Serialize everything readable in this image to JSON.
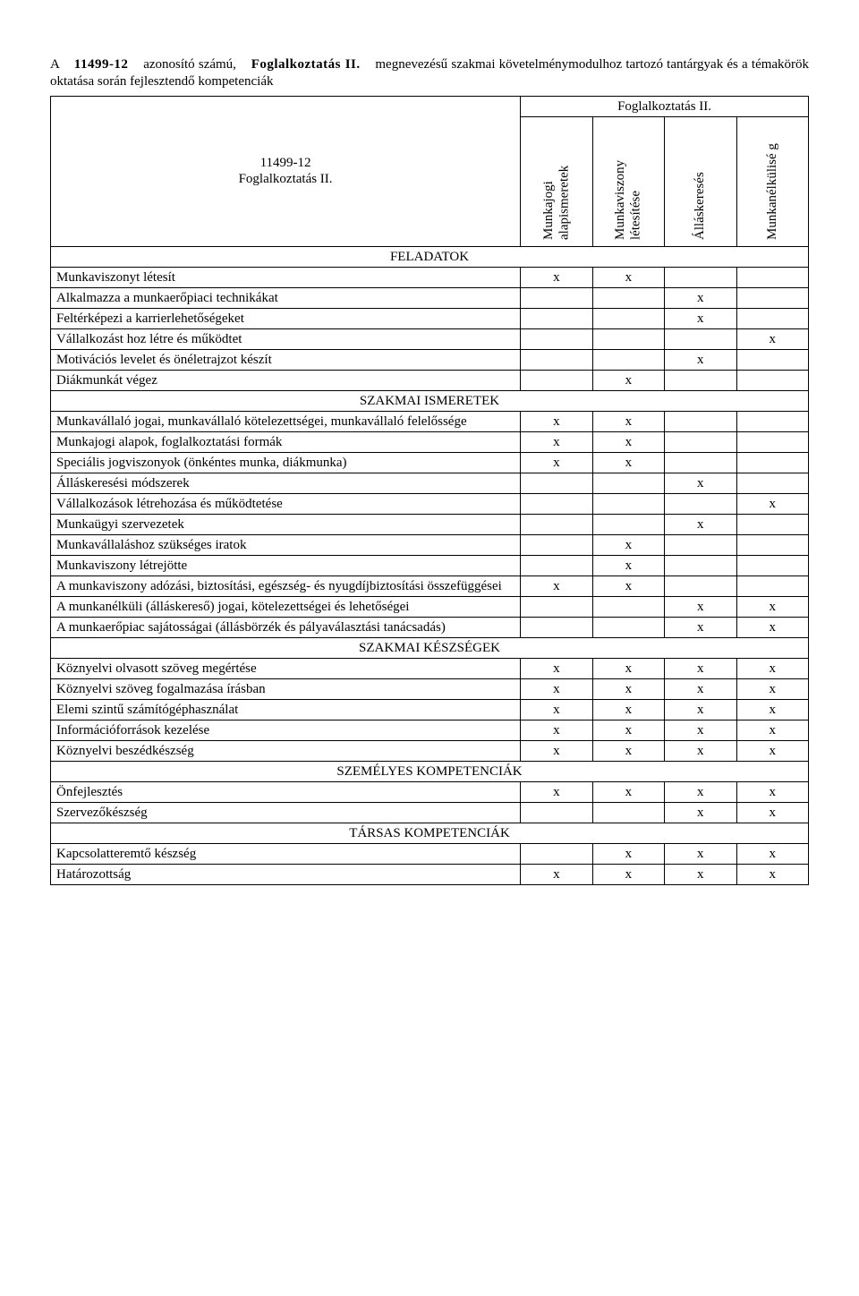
{
  "intro_parts": {
    "a": "A",
    "code_bold": "11499-12",
    "mid1": "azonosító  számú,",
    "name_bold": "Foglalkoztatás  II.",
    "mid2": "megnevezésű  szakmai követelménymodulhoz tartozó tantárgyak és a témakörök oktatása során fejlesztendő kompetenciák"
  },
  "header": {
    "module_block": "11499-12\nFoglalkoztatás II.",
    "group_title": "Foglalkoztatás II.",
    "cols": [
      "Munkajogi alapismeretek",
      "Munkaviszony létesítése",
      "Álláskeresés",
      "Munkanélkülisé g"
    ]
  },
  "sections": [
    {
      "title": "FELADATOK",
      "rows": [
        {
          "label": "Munkaviszonyt létesít",
          "marks": [
            "x",
            "x",
            "",
            ""
          ]
        },
        {
          "label": "Alkalmazza a munkaerőpiaci technikákat",
          "marks": [
            "",
            "",
            "x",
            ""
          ]
        },
        {
          "label": "Feltérképezi a karrierlehetőségeket",
          "marks": [
            "",
            "",
            "x",
            ""
          ]
        },
        {
          "label": "Vállalkozást hoz létre és működtet",
          "marks": [
            "",
            "",
            "",
            "x"
          ]
        },
        {
          "label": "Motivációs levelet és önéletrajzot készít",
          "marks": [
            "",
            "",
            "x",
            ""
          ]
        },
        {
          "label": "Diákmunkát végez",
          "marks": [
            "",
            "x",
            "",
            ""
          ]
        }
      ]
    },
    {
      "title": "SZAKMAI ISMERETEK",
      "rows": [
        {
          "label": "Munkavállaló jogai, munkavállaló kötelezettségei, munkavállaló felelőssége",
          "marks": [
            "x",
            "x",
            "",
            ""
          ]
        },
        {
          "label": "Munkajogi alapok, foglalkoztatási formák",
          "marks": [
            "x",
            "x",
            "",
            ""
          ]
        },
        {
          "label": "Speciális jogviszonyok (önkéntes munka, diákmunka)",
          "marks": [
            "x",
            "x",
            "",
            ""
          ]
        },
        {
          "label": "Álláskeresési módszerek",
          "marks": [
            "",
            "",
            "x",
            ""
          ]
        },
        {
          "label": "Vállalkozások létrehozása és működtetése",
          "marks": [
            "",
            "",
            "",
            "x"
          ]
        },
        {
          "label": "Munkaügyi szervezetek",
          "marks": [
            "",
            "",
            "x",
            ""
          ]
        },
        {
          "label": "Munkavállaláshoz szükséges iratok",
          "marks": [
            "",
            "x",
            "",
            ""
          ]
        },
        {
          "label": "Munkaviszony létrejötte",
          "marks": [
            "",
            "x",
            "",
            ""
          ]
        },
        {
          "label": "A munkaviszony adózási, biztosítási, egészség- és nyugdíjbiztosítási összefüggései",
          "marks": [
            "x",
            "x",
            "",
            ""
          ]
        },
        {
          "label": "A munkanélküli (álláskereső) jogai, kötelezettségei és lehetőségei",
          "marks": [
            "",
            "",
            "x",
            "x"
          ]
        },
        {
          "label": "A munkaerőpiac sajátosságai (állásbörzék és pályaválasztási tanácsadás)",
          "marks": [
            "",
            "",
            "x",
            "x"
          ]
        }
      ]
    },
    {
      "title": "SZAKMAI KÉSZSÉGEK",
      "rows": [
        {
          "label": "Köznyelvi olvasott szöveg megértése",
          "marks": [
            "x",
            "x",
            "x",
            "x"
          ]
        },
        {
          "label": "Köznyelvi szöveg fogalmazása írásban",
          "marks": [
            "x",
            "x",
            "x",
            "x"
          ]
        },
        {
          "label": "Elemi szintű számítógéphasználat",
          "marks": [
            "x",
            "x",
            "x",
            "x"
          ]
        },
        {
          "label": "Információforrások kezelése",
          "marks": [
            "x",
            "x",
            "x",
            "x"
          ]
        },
        {
          "label": "Köznyelvi beszédkészség",
          "marks": [
            "x",
            "x",
            "x",
            "x"
          ]
        }
      ]
    },
    {
      "title": "SZEMÉLYES KOMPETENCIÁK",
      "rows": [
        {
          "label": "Önfejlesztés",
          "marks": [
            "x",
            "x",
            "x",
            "x"
          ]
        },
        {
          "label": "Szervezőkészség",
          "marks": [
            "",
            "",
            "x",
            "x"
          ]
        }
      ]
    },
    {
      "title": "TÁRSAS KOMPETENCIÁK",
      "rows": [
        {
          "label": "Kapcsolatteremtő készség",
          "marks": [
            "",
            "x",
            "x",
            "x"
          ]
        },
        {
          "label": "Határozottság",
          "marks": [
            "x",
            "x",
            "x",
            "x"
          ]
        }
      ]
    }
  ]
}
